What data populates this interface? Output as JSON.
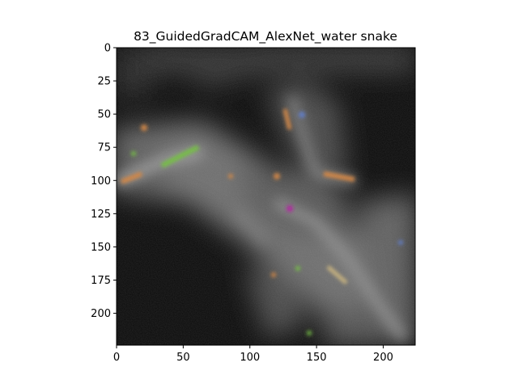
{
  "chart_data": {
    "type": "heatmap",
    "title": "83_GuidedGradCAM_AlexNet_water snake",
    "xlabel": "",
    "ylabel": "",
    "xlim": [
      0,
      224
    ],
    "ylim": [
      224,
      0
    ],
    "x_ticks": [
      0,
      50,
      100,
      150,
      200
    ],
    "y_ticks": [
      0,
      25,
      50,
      75,
      100,
      125,
      150,
      175,
      200
    ],
    "grid": false,
    "legend": "none",
    "image_size": [
      224,
      224
    ],
    "colormap": "rgb attribution overlay (mostly grayscale)",
    "colors": {
      "background_dark": "#0a0a0a",
      "highlight_gray": "#8a8a8a",
      "accent_orange": "#d2823c",
      "accent_green": "#6fbf3a",
      "accent_magenta": "#b0199f",
      "accent_blue": "#5a78c8"
    }
  }
}
